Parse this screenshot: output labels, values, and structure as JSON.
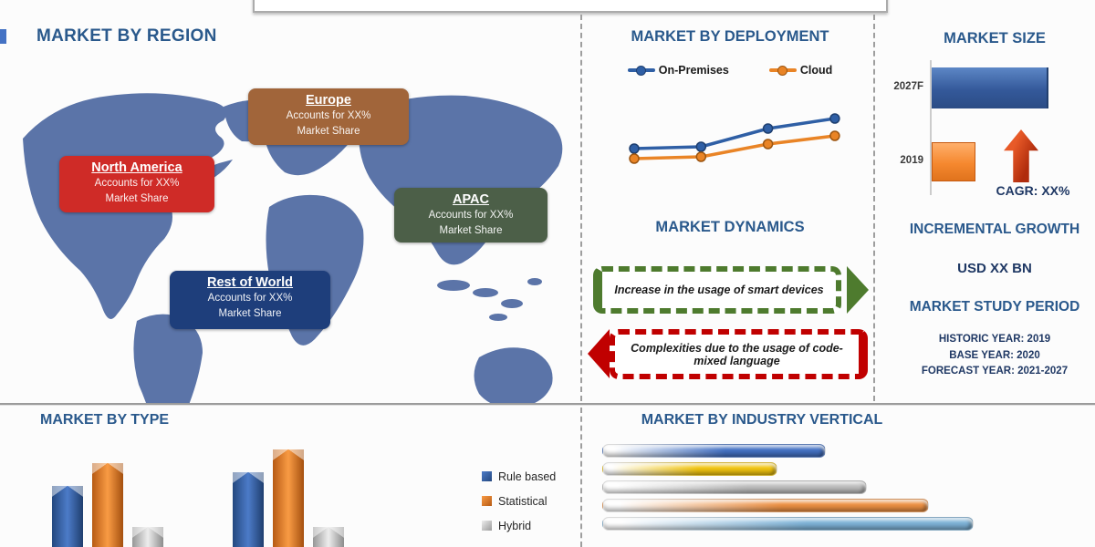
{
  "sections": {
    "region": {
      "title": "MARKET BY REGION",
      "map_color": "#5B74A8",
      "callouts": [
        {
          "name": "Europe",
          "line1": "Accounts for XX%",
          "line2": "Market Share",
          "color": "#A1653A"
        },
        {
          "name": "North America",
          "line1": "Accounts for XX%",
          "line2": "Market Share",
          "color": "#CF2B27"
        },
        {
          "name": "APAC",
          "line1": "Accounts for XX%",
          "line2": "Market Share",
          "color": "#4C5F48"
        },
        {
          "name": "Rest of World",
          "line1": "Accounts for XX%",
          "line2": "Market Share",
          "color": "#1E3E7B"
        }
      ]
    },
    "deployment": {
      "title": "MARKET BY DEPLOYMENT"
    },
    "market_size": {
      "title": "MARKET SIZE",
      "cagr_label": "CAGR: XX%"
    },
    "dynamics": {
      "title": "MARKET DYNAMICS",
      "driver": "Increase in the usage of smart devices",
      "restraint": "Complexities due to the usage of code-mixed language",
      "driver_color": "#4E7B2E",
      "restraint_color": "#C00000"
    },
    "incremental_growth": {
      "title": "INCREMENTAL GROWTH",
      "value": "USD XX BN"
    },
    "study_period": {
      "title": "MARKET STUDY PERIOD",
      "lines": [
        "HISTORIC YEAR: 2019",
        "BASE YEAR: 2020",
        "FORECAST YEAR: 2021-2027"
      ]
    },
    "type": {
      "title": "MARKET BY TYPE"
    },
    "industry": {
      "title": "MARKET BY INDUSTRY VERTICAL"
    }
  },
  "chart_data": [
    {
      "id": "deployment",
      "type": "line",
      "title": "MARKET BY DEPLOYMENT",
      "x": [
        "",
        "",
        "",
        ""
      ],
      "series": [
        {
          "name": "On-Premises",
          "color": "#2F5FA5",
          "values": [
            58,
            60,
            80,
            91
          ]
        },
        {
          "name": "Cloud",
          "color": "#E98426",
          "values": [
            47,
            49,
            63,
            72
          ]
        }
      ],
      "legend_position": "top",
      "note": "axes unlabeled; values are relative estimates"
    },
    {
      "id": "market_size",
      "type": "bar",
      "orientation": "horizontal",
      "title": "MARKET SIZE",
      "categories": [
        "2027F",
        "2019"
      ],
      "values": [
        100,
        38
      ],
      "colors": [
        "#3B67AD",
        "#F79646"
      ],
      "annotation": "CAGR: XX%",
      "note": "axis unlabeled; values are relative estimates"
    },
    {
      "id": "market_by_type",
      "type": "bar",
      "title": "MARKET BY TYPE",
      "categories": [
        "",
        ""
      ],
      "series": [
        {
          "name": "Rule based",
          "color": "#3A66B0",
          "values": [
            67,
            82
          ]
        },
        {
          "name": "Statistical",
          "color": "#ED7D31",
          "values": [
            92,
            107
          ]
        },
        {
          "name": "Hybrid",
          "color": "#C0C0C0",
          "values": [
            22,
            22
          ]
        }
      ],
      "legend_position": "right",
      "note": "bars cropped at bottom edge; values are relative estimates"
    },
    {
      "id": "industry_vertical",
      "type": "bar",
      "orientation": "horizontal",
      "title": "MARKET BY INDUSTRY VERTICAL",
      "categories": [
        "",
        "",
        "",
        "",
        ""
      ],
      "values": [
        60,
        47,
        71,
        88,
        100
      ],
      "colors": [
        "#4472C4",
        "#F2C50F",
        "#BFBFBF",
        "#ED9144",
        "#7EB3D8"
      ],
      "note": "category labels not shown; values are relative estimates"
    }
  ]
}
